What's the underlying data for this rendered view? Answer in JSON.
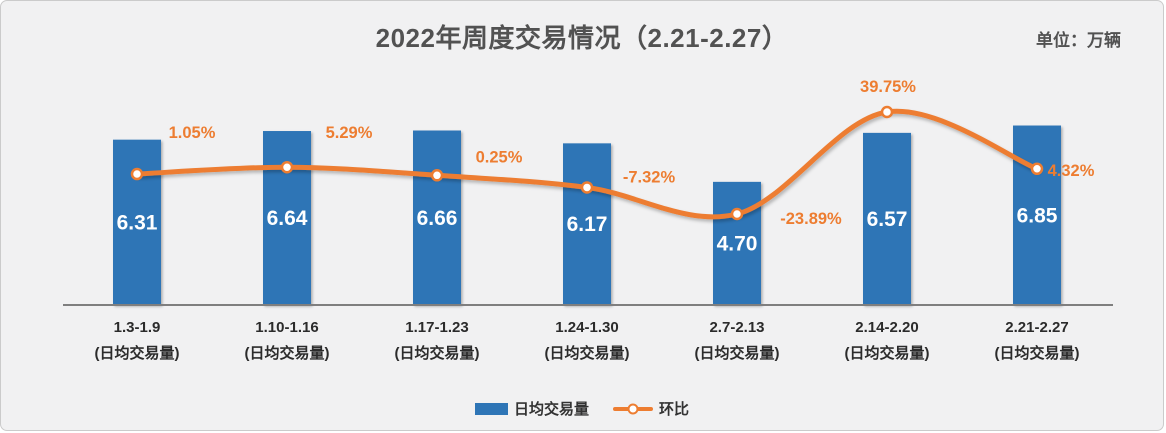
{
  "title": "2022年周度交易情况（2.21-2.27）",
  "unit_label": "单位：万辆",
  "colors": {
    "bar": "#2E75B6",
    "line": "#ED7D31",
    "marker_fill": "#FFFFFF",
    "value_label": "#FFFFFF",
    "pct_label": "#ED7D31",
    "axis_line": "#7F7F7F",
    "category_text": "#2B2B2B",
    "title_text": "#525252",
    "panel_bg": "#F1F1F2"
  },
  "legend": {
    "bar_label": "日均交易量",
    "line_label": "环比"
  },
  "chart_data": {
    "type": "combo bar+line",
    "title": "2022年周度交易情况（2.21-2.27）",
    "unit": "万辆",
    "categories": [
      "1.3-1.9",
      "1.10-1.16",
      "1.17-1.23",
      "1.24-1.30",
      "2.7-2.13",
      "2.14-2.20",
      "2.21-2.27"
    ],
    "category_sublabel": "(日均交易量)",
    "series": [
      {
        "name": "日均交易量",
        "type": "bar",
        "values": [
          6.31,
          6.64,
          6.66,
          6.17,
          4.7,
          6.57,
          6.85
        ],
        "value_labels": [
          "6.31",
          "6.64",
          "6.66",
          "6.17",
          "4.70",
          "6.57",
          "6.85"
        ]
      },
      {
        "name": "环比",
        "type": "line",
        "values_pct": [
          1.05,
          5.29,
          0.25,
          -7.32,
          -23.89,
          39.75,
          4.32
        ],
        "point_labels": [
          "1.05%",
          "5.29%",
          "0.25%",
          "-7.32%",
          "-23.89%",
          "39.75%",
          "4.32%"
        ]
      }
    ],
    "legend_position": "bottom",
    "grid": false,
    "value_axis_visible": false,
    "pct_axis_visible": false
  }
}
